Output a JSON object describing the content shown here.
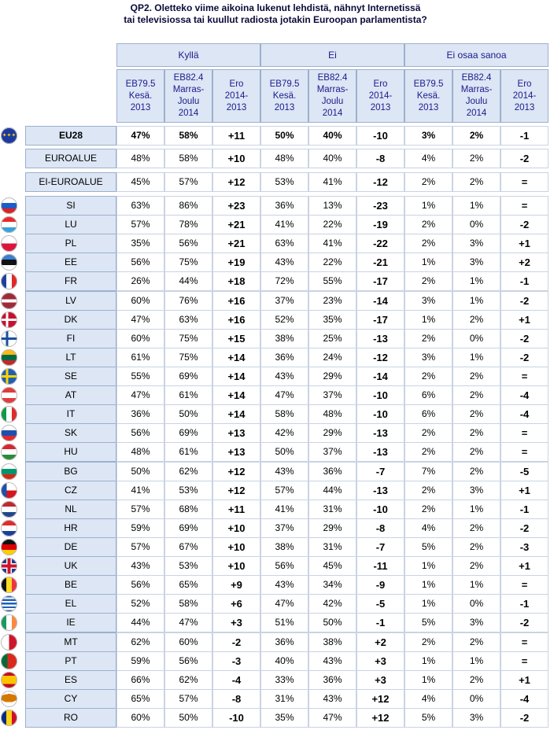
{
  "title_line1": "QP2. Oletteko viime aikoina lukenut lehdistä, nähnyt Internetissä",
  "title_line2": "tai televisiossa tai kuullut radiosta jotakin Euroopan parlamentista?",
  "groups": [
    "Kyllä",
    "Ei",
    "Ei osaa sanoa"
  ],
  "subheaders": [
    "EB79.5\nKesä.\n2013",
    "EB82.4\nMarras-\nJoulu\n2014",
    "Ero\n2014-\n2013"
  ],
  "rows": [
    {
      "code": "EU28",
      "flag": "eu",
      "bold": true,
      "v": [
        "47%",
        "58%",
        "+11",
        "50%",
        "40%",
        "-10",
        "3%",
        "2%",
        "-1"
      ]
    },
    {
      "code": "EUROALUE",
      "flag": "",
      "v": [
        "48%",
        "58%",
        "+10",
        "48%",
        "40%",
        "-8",
        "4%",
        "2%",
        "-2"
      ]
    },
    {
      "code": "EI-EUROALUE",
      "flag": "",
      "v": [
        "45%",
        "57%",
        "+12",
        "53%",
        "41%",
        "-12",
        "2%",
        "2%",
        "="
      ]
    },
    {
      "code": "SI",
      "flag": "si",
      "v": [
        "63%",
        "86%",
        "+23",
        "36%",
        "13%",
        "-23",
        "1%",
        "1%",
        "="
      ]
    },
    {
      "code": "LU",
      "flag": "lu",
      "v": [
        "57%",
        "78%",
        "+21",
        "41%",
        "22%",
        "-19",
        "2%",
        "0%",
        "-2"
      ]
    },
    {
      "code": "PL",
      "flag": "pl",
      "v": [
        "35%",
        "56%",
        "+21",
        "63%",
        "41%",
        "-22",
        "2%",
        "3%",
        "+1"
      ]
    },
    {
      "code": "EE",
      "flag": "ee",
      "v": [
        "56%",
        "75%",
        "+19",
        "43%",
        "22%",
        "-21",
        "1%",
        "3%",
        "+2"
      ]
    },
    {
      "code": "FR",
      "flag": "fr",
      "v": [
        "26%",
        "44%",
        "+18",
        "72%",
        "55%",
        "-17",
        "2%",
        "1%",
        "-1"
      ]
    },
    {
      "code": "LV",
      "flag": "lv",
      "v": [
        "60%",
        "76%",
        "+16",
        "37%",
        "23%",
        "-14",
        "3%",
        "1%",
        "-2"
      ]
    },
    {
      "code": "DK",
      "flag": "dk",
      "v": [
        "47%",
        "63%",
        "+16",
        "52%",
        "35%",
        "-17",
        "1%",
        "2%",
        "+1"
      ]
    },
    {
      "code": "FI",
      "flag": "fi",
      "v": [
        "60%",
        "75%",
        "+15",
        "38%",
        "25%",
        "-13",
        "2%",
        "0%",
        "-2"
      ]
    },
    {
      "code": "LT",
      "flag": "lt",
      "v": [
        "61%",
        "75%",
        "+14",
        "36%",
        "24%",
        "-12",
        "3%",
        "1%",
        "-2"
      ]
    },
    {
      "code": "SE",
      "flag": "se",
      "v": [
        "55%",
        "69%",
        "+14",
        "43%",
        "29%",
        "-14",
        "2%",
        "2%",
        "="
      ]
    },
    {
      "code": "AT",
      "flag": "at",
      "v": [
        "47%",
        "61%",
        "+14",
        "47%",
        "37%",
        "-10",
        "6%",
        "2%",
        "-4"
      ]
    },
    {
      "code": "IT",
      "flag": "it",
      "v": [
        "36%",
        "50%",
        "+14",
        "58%",
        "48%",
        "-10",
        "6%",
        "2%",
        "-4"
      ]
    },
    {
      "code": "SK",
      "flag": "sk",
      "v": [
        "56%",
        "69%",
        "+13",
        "42%",
        "29%",
        "-13",
        "2%",
        "2%",
        "="
      ]
    },
    {
      "code": "HU",
      "flag": "hu",
      "v": [
        "48%",
        "61%",
        "+13",
        "50%",
        "37%",
        "-13",
        "2%",
        "2%",
        "="
      ]
    },
    {
      "code": "BG",
      "flag": "bg",
      "v": [
        "50%",
        "62%",
        "+12",
        "43%",
        "36%",
        "-7",
        "7%",
        "2%",
        "-5"
      ]
    },
    {
      "code": "CZ",
      "flag": "cz",
      "v": [
        "41%",
        "53%",
        "+12",
        "57%",
        "44%",
        "-13",
        "2%",
        "3%",
        "+1"
      ]
    },
    {
      "code": "NL",
      "flag": "nl",
      "v": [
        "57%",
        "68%",
        "+11",
        "41%",
        "31%",
        "-10",
        "2%",
        "1%",
        "-1"
      ]
    },
    {
      "code": "HR",
      "flag": "hr",
      "v": [
        "59%",
        "69%",
        "+10",
        "37%",
        "29%",
        "-8",
        "4%",
        "2%",
        "-2"
      ]
    },
    {
      "code": "DE",
      "flag": "de",
      "v": [
        "57%",
        "67%",
        "+10",
        "38%",
        "31%",
        "-7",
        "5%",
        "2%",
        "-3"
      ]
    },
    {
      "code": "UK",
      "flag": "uk",
      "v": [
        "43%",
        "53%",
        "+10",
        "56%",
        "45%",
        "-11",
        "1%",
        "2%",
        "+1"
      ]
    },
    {
      "code": "BE",
      "flag": "be",
      "v": [
        "56%",
        "65%",
        "+9",
        "43%",
        "34%",
        "-9",
        "1%",
        "1%",
        "="
      ]
    },
    {
      "code": "EL",
      "flag": "el",
      "v": [
        "52%",
        "58%",
        "+6",
        "47%",
        "42%",
        "-5",
        "1%",
        "0%",
        "-1"
      ]
    },
    {
      "code": "IE",
      "flag": "ie",
      "v": [
        "44%",
        "47%",
        "+3",
        "51%",
        "50%",
        "-1",
        "5%",
        "3%",
        "-2"
      ]
    },
    {
      "code": "MT",
      "flag": "mt",
      "v": [
        "62%",
        "60%",
        "-2",
        "36%",
        "38%",
        "+2",
        "2%",
        "2%",
        "="
      ]
    },
    {
      "code": "PT",
      "flag": "pt",
      "v": [
        "59%",
        "56%",
        "-3",
        "40%",
        "43%",
        "+3",
        "1%",
        "1%",
        "="
      ]
    },
    {
      "code": "ES",
      "flag": "es",
      "v": [
        "66%",
        "62%",
        "-4",
        "33%",
        "36%",
        "+3",
        "1%",
        "2%",
        "+1"
      ]
    },
    {
      "code": "CY",
      "flag": "cy",
      "v": [
        "65%",
        "57%",
        "-8",
        "31%",
        "43%",
        "+12",
        "4%",
        "0%",
        "-4"
      ]
    },
    {
      "code": "RO",
      "flag": "ro",
      "v": [
        "60%",
        "50%",
        "-10",
        "35%",
        "47%",
        "+12",
        "5%",
        "3%",
        "-2"
      ]
    }
  ]
}
